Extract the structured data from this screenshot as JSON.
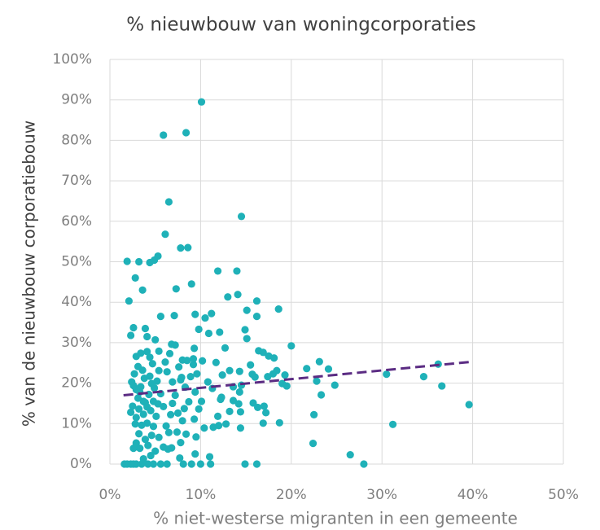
{
  "chart_data": {
    "type": "scatter",
    "title": "% nieuwbouw van woningcorporaties",
    "x_label": "% niet-westerse migranten in een gemeente",
    "y_label": "% van de nieuwbouw corporatiebouw",
    "color": "#1fb1b8",
    "grid": true,
    "xlim": [
      0,
      50
    ],
    "ylim": [
      0,
      100
    ],
    "xticks": [
      {
        "value": 0,
        "label": "0%"
      },
      {
        "value": 10,
        "label": "10%"
      },
      {
        "value": 20,
        "label": "20%"
      },
      {
        "value": 30,
        "label": "30%"
      },
      {
        "value": 40,
        "label": "40%"
      },
      {
        "value": 50,
        "label": "50%"
      }
    ],
    "yticks": [
      {
        "value": 0,
        "label": "0%"
      },
      {
        "value": 10,
        "label": "10%"
      },
      {
        "value": 20,
        "label": "20%"
      },
      {
        "value": 30,
        "label": "30%"
      },
      {
        "value": 40,
        "label": "40%"
      },
      {
        "value": 50,
        "label": "50%"
      },
      {
        "value": 60,
        "label": "60%"
      },
      {
        "value": 70,
        "label": "70%"
      },
      {
        "value": 80,
        "label": "80%"
      },
      {
        "value": 90,
        "label": "90%"
      },
      {
        "value": 100,
        "label": "100%"
      }
    ],
    "x": [
      10.1,
      5.9,
      8.4,
      6.5,
      14.5,
      6.1,
      1.9,
      3.2,
      4.9,
      5.3,
      7.8,
      8.6,
      2.8,
      4.4,
      9,
      3.6,
      7.3,
      11.9,
      14,
      13,
      14.1,
      16.2,
      18.6,
      15.1,
      9.4,
      5.6,
      2.1,
      7.1,
      10.5,
      11.2,
      16.2,
      20,
      14.9,
      15.1,
      12.1,
      10.9,
      9.8,
      2.3,
      2.6,
      3.9,
      4.1,
      5,
      6.8,
      7.2,
      9.3,
      16.4,
      16.9,
      17.5,
      18.1,
      23.1,
      21.7,
      22.8,
      24.1,
      24.8,
      23.3,
      30.5,
      34.6,
      36.2,
      36.6,
      39.6,
      31.2,
      22.5,
      22.4,
      26.5,
      28,
      19.3,
      19,
      19.5,
      18,
      18.4,
      17,
      17.2,
      16.9,
      18.7,
      17.4,
      16,
      15.5,
      14.3,
      13.2,
      12.4,
      14.3,
      13.6,
      14.2,
      14.4,
      13.2,
      12.8,
      14.4,
      12,
      11.4,
      15.8,
      16.3,
      14.9,
      16.2,
      11.1,
      10,
      11,
      9,
      8.1,
      6.3,
      5.6,
      4.8,
      4.2,
      3.5,
      2.9,
      2.6,
      2.3,
      1.9,
      1.6,
      7.7,
      6.8,
      7.4,
      8.4,
      9.5,
      10.4,
      11.9,
      12.2,
      11.3,
      10.8,
      10.1,
      9.8,
      9.3,
      9.4,
      9.6,
      9.2,
      9.2,
      10.2,
      8.5,
      8,
      7.6,
      7.9,
      8.3,
      7.2,
      6.9,
      7.5,
      8,
      6.2,
      6.7,
      5.9,
      5.6,
      5.2,
      6.3,
      6.1,
      6.6,
      5.4,
      4.7,
      4.4,
      4.1,
      3.4,
      2.9,
      3.1,
      2.7,
      2.4,
      2.6,
      3.4,
      3.8,
      4.4,
      4.9,
      4.3,
      3.7,
      3.1,
      2.5,
      3.2,
      2.3,
      2.9,
      3.7,
      4.5,
      5.1,
      4.8,
      4.1,
      3.5,
      2.8,
      3.2,
      3.9,
      2.9,
      3.3,
      2.6,
      4.2,
      4.6,
      5.4,
      5,
      5.9,
      6.4,
      4.5,
      3.7,
      3.9,
      4.8,
      5.3,
      4.1,
      3.3,
      2.9,
      4.6,
      3.6,
      5.4,
      6.9,
      7.8,
      8.9,
      8.7,
      8.2,
      6.5,
      7.8,
      9.4,
      12.3,
      13.6,
      11.7,
      12.7,
      14.5,
      15.7
    ],
    "values": [
      89.5,
      81.3,
      81.9,
      64.8,
      61.2,
      56.8,
      50.1,
      50,
      50.4,
      51.4,
      53.4,
      53.5,
      46,
      49.8,
      44.5,
      43,
      43.3,
      47.7,
      47.7,
      41.3,
      41.9,
      40.3,
      38.3,
      38,
      37,
      36.5,
      40.3,
      36.7,
      36.1,
      37.2,
      36.5,
      29.2,
      33.2,
      31,
      32.6,
      32.3,
      33.3,
      31.8,
      33.7,
      33.5,
      31.5,
      30.7,
      29.6,
      29.4,
      28.6,
      28,
      27.6,
      26.7,
      26.2,
      25.3,
      23.6,
      20.5,
      23.5,
      19.5,
      17.1,
      22.2,
      21.6,
      24.7,
      19.3,
      14.7,
      9.8,
      12.2,
      5.1,
      2.3,
      0,
      22,
      19.9,
      19.3,
      22.3,
      23.1,
      14.3,
      12.7,
      10.1,
      10.2,
      21.6,
      21.5,
      24.5,
      22.9,
      23.1,
      22,
      17.8,
      15.7,
      14.9,
      12.9,
      13,
      9.9,
      8.9,
      9.5,
      9.1,
      15.1,
      14,
      0,
      0,
      0,
      0,
      1.8,
      0,
      0,
      0,
      0,
      0,
      0,
      0,
      0,
      0,
      0,
      0,
      0,
      1.5,
      4,
      7.9,
      7.4,
      6.7,
      8.9,
      11.8,
      16,
      18.7,
      20.3,
      15.5,
      13.6,
      11.1,
      17.8,
      22.3,
      24.6,
      26,
      25.5,
      25.6,
      25.7,
      24,
      21.4,
      19,
      17,
      15,
      12.6,
      10.7,
      9.4,
      12.2,
      14.2,
      17.4,
      20.5,
      22.8,
      25.2,
      27.3,
      27.9,
      24.8,
      26.4,
      27.8,
      27.4,
      26.6,
      24.1,
      22.3,
      20.3,
      19.4,
      19.1,
      21.2,
      21.7,
      18.8,
      17.2,
      15.5,
      16.3,
      14.3,
      13.6,
      12.8,
      11.5,
      12.3,
      13.2,
      11.8,
      9.3,
      10.1,
      9.6,
      9.9,
      7.5,
      6.1,
      5.2,
      3.9,
      3.9,
      4.6,
      7.1,
      6.6,
      3.2,
      4.2,
      3.7,
      2.1,
      1.3,
      15.2,
      15.5,
      14.9,
      14.1,
      17.8,
      18.4,
      19.9,
      23.2,
      23.1,
      20.3,
      20.8,
      21.6,
      15.4,
      13.7,
      7.8,
      5.3,
      2.5,
      16.5,
      19.1,
      25.1,
      28.7,
      19.5,
      22.2
    ],
    "trendline": {
      "x": [
        1.5,
        40
      ],
      "values": [
        17,
        25.3
      ],
      "color": "#5b2c83"
    }
  }
}
